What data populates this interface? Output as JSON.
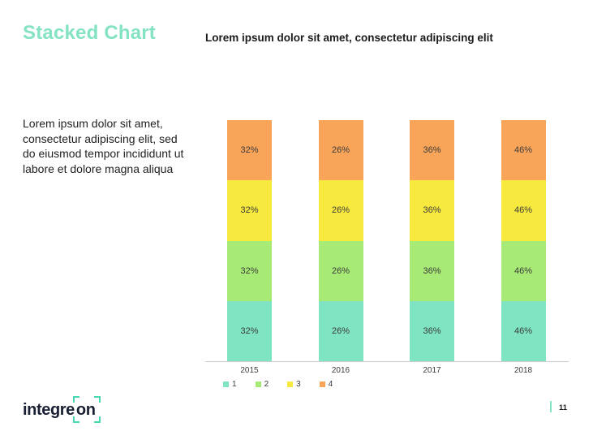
{
  "slide": {
    "title": "Stacked Chart",
    "subtitle": "Lorem ipsum dolor sit amet, consectetur adipiscing elit",
    "body_lines": [
      "Lorem ipsum dolor sit amet,",
      "consectetur adipiscing elit, sed",
      "do eiusmod tempor incididunt ut",
      "labore et dolore magna aliqua"
    ],
    "page_number": "11"
  },
  "branding": {
    "logo_text_main": "integre",
    "logo_text_framed": "on",
    "logo_color": "#1a2033",
    "accent_color": "#49d8b2",
    "title_color": "#84e3c2"
  },
  "chart_data": {
    "type": "bar",
    "stacked": true,
    "title": "",
    "xlabel": "",
    "ylabel": "",
    "categories": [
      "2015",
      "2016",
      "2017",
      "2018"
    ],
    "series": [
      {
        "name": "1",
        "color": "#7fe4c2",
        "values": [
          32,
          26,
          36,
          46
        ]
      },
      {
        "name": "2",
        "color": "#a8ea76",
        "values": [
          32,
          26,
          36,
          46
        ]
      },
      {
        "name": "3",
        "color": "#f8e93e",
        "values": [
          32,
          26,
          36,
          46
        ]
      },
      {
        "name": "4",
        "color": "#f8a55a",
        "values": [
          32,
          26,
          36,
          46
        ]
      }
    ],
    "value_suffix": "%",
    "segment_display": "equal-height",
    "grid": false,
    "legend_position": "bottom-left",
    "axis_color": "#cccccc",
    "label_color": "#3b3b3b"
  }
}
